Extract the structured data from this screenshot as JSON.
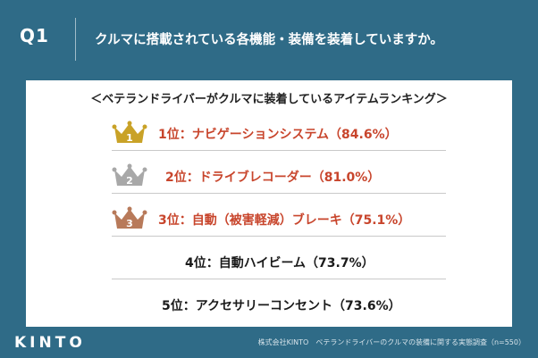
{
  "header": {
    "question_label": "Q1",
    "question_text": "クルマに搭載されている各機能・装備を装着していますか。"
  },
  "panel": {
    "subtitle": "＜ベテランドライバーがクルマに装着しているアイテムランキング＞",
    "ranking": [
      {
        "crown_number": "1",
        "text": "1位：ナビゲーションシステム（84.6%）",
        "crown_color": "#c9a227"
      },
      {
        "crown_number": "2",
        "text": "2位：ドライブレコーダー（81.0%）",
        "crown_color": "#a8a8a8"
      },
      {
        "crown_number": "3",
        "text": "3位：自動（被害軽減）ブレーキ（75.1%）",
        "crown_color": "#b87a5a"
      },
      {
        "text": "4位：自動ハイビーム（73.7%）"
      },
      {
        "text": "5位：アクセサリーコンセント（73.6%）"
      }
    ]
  },
  "footer": {
    "logo": "KINTO",
    "source": "株式会社KINTO　ベテランドライバーのクルマの装備に関する実態調査（n=550）"
  },
  "colors": {
    "background": "#2f6b87",
    "rank_highlight": "#c8452c"
  }
}
